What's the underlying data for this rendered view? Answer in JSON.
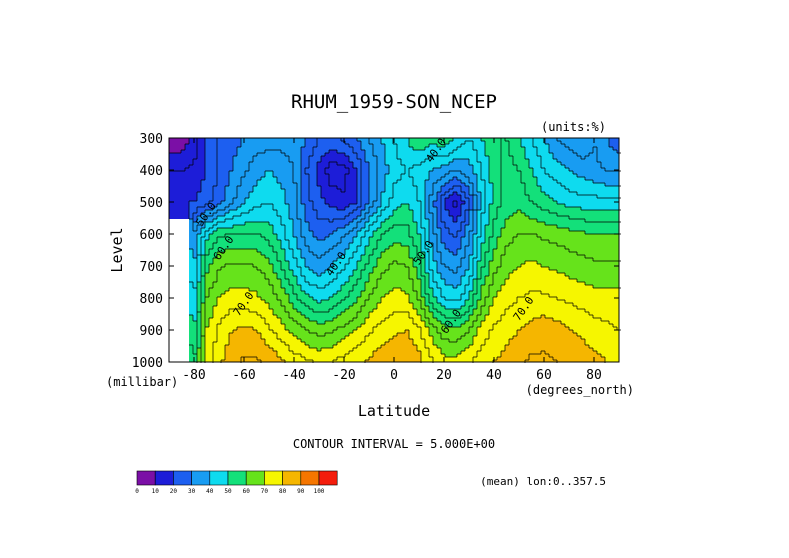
{
  "chart_data": {
    "type": "heatmap",
    "title": "RHUM_1959-SON_NCEP",
    "units_label": "(units:%)",
    "xlabel": "Latitude",
    "ylabel": "Level",
    "x_units": "(degrees_north)",
    "y_units": "(millibar)",
    "xlim": [
      -90,
      90
    ],
    "ylim": [
      1000,
      300
    ],
    "x_ticks": [
      -80,
      -60,
      -40,
      -20,
      0,
      20,
      40,
      60,
      80
    ],
    "x_tick_labels": [
      "-80",
      "-60",
      "-40",
      "-20",
      "0",
      "20",
      "40",
      "60",
      "80"
    ],
    "y_ticks": [
      300,
      400,
      500,
      600,
      700,
      800,
      900,
      1000
    ],
    "y_tick_labels": [
      "300",
      "400",
      "500",
      "600",
      "700",
      "800",
      "900",
      "1000"
    ],
    "contour_interval_label": "CONTOUR INTERVAL = 5.000E+00",
    "footnote": "(mean) lon:0..357.5",
    "grid": false,
    "contour_labels": [
      {
        "text": "50.0",
        "lat": -74,
        "level": 545
      },
      {
        "text": "60.0",
        "lat": -67,
        "level": 650
      },
      {
        "text": "70.0",
        "lat": -59,
        "level": 825
      },
      {
        "text": "40.0",
        "lat": -22,
        "level": 700
      },
      {
        "text": "40.0",
        "lat": 18,
        "level": 345
      },
      {
        "text": "50.0",
        "lat": 13,
        "level": 665
      },
      {
        "text": "60.0",
        "lat": 24,
        "level": 880
      },
      {
        "text": "70.0",
        "lat": 53,
        "level": 840
      }
    ],
    "field": {
      "lat": [
        -90,
        -85,
        -80,
        -75,
        -70,
        -65,
        -60,
        -55,
        -50,
        -45,
        -40,
        -35,
        -30,
        -25,
        -20,
        -15,
        -10,
        -5,
        0,
        5,
        10,
        15,
        20,
        25,
        30,
        35,
        40,
        45,
        50,
        55,
        60,
        65,
        70,
        75,
        80,
        85,
        90
      ],
      "levels": [
        300,
        400,
        500,
        600,
        700,
        800,
        900,
        1000
      ],
      "missing_value": -1,
      "values": [
        [
          5,
          6,
          12,
          20,
          25,
          28,
          30,
          32,
          32,
          33,
          33,
          30,
          25,
          25,
          26,
          30,
          35,
          40,
          45,
          50,
          55,
          52,
          55,
          50,
          45,
          50,
          55,
          55,
          50,
          45,
          40,
          35,
          32,
          30,
          35,
          30,
          25
        ],
        [
          15,
          15,
          16,
          20,
          25,
          30,
          34,
          38,
          40,
          38,
          35,
          25,
          18,
          12,
          13,
          20,
          30,
          37,
          43,
          45,
          43,
          40,
          38,
          35,
          38,
          45,
          52,
          57,
          55,
          50,
          45,
          42,
          40,
          38,
          36,
          35,
          35
        ],
        [
          18,
          18,
          20,
          23,
          28,
          34,
          40,
          43,
          45,
          42,
          37,
          27,
          22,
          18,
          16,
          20,
          30,
          40,
          47,
          50,
          45,
          33,
          20,
          13,
          25,
          42,
          52,
          57,
          58,
          55,
          52,
          50,
          48,
          47,
          47,
          46,
          46
        ],
        [
          -1,
          -1,
          35,
          48,
          54,
          55,
          55,
          55,
          53,
          47,
          40,
          32,
          28,
          30,
          34,
          40,
          48,
          55,
          58,
          57,
          50,
          38,
          27,
          24,
          34,
          47,
          57,
          63,
          65,
          65,
          64,
          63,
          62,
          61,
          60,
          60,
          60
        ],
        [
          -1,
          -1,
          40,
          58,
          64,
          66,
          66,
          65,
          62,
          55,
          47,
          40,
          37,
          40,
          44,
          50,
          57,
          63,
          66,
          65,
          57,
          43,
          35,
          33,
          40,
          54,
          63,
          68,
          70,
          71,
          70,
          69,
          68,
          67,
          66,
          66,
          66
        ],
        [
          -1,
          -1,
          45,
          65,
          70,
          72,
          72,
          71,
          68,
          64,
          57,
          51,
          48,
          50,
          54,
          59,
          65,
          70,
          72,
          71,
          64,
          52,
          45,
          43,
          50,
          62,
          70,
          73,
          75,
          76,
          76,
          75,
          74,
          73,
          72,
          72,
          72
        ],
        [
          -1,
          -1,
          50,
          70,
          76,
          80,
          81,
          80,
          76,
          72,
          68,
          65,
          63,
          64,
          67,
          70,
          74,
          77,
          79,
          80,
          76,
          68,
          62,
          61,
          65,
          72,
          76,
          78,
          80,
          82,
          83,
          82,
          80,
          79,
          77,
          76,
          75
        ],
        [
          -1,
          -1,
          55,
          72,
          79,
          83,
          86,
          86,
          84,
          81,
          78,
          76,
          74,
          75,
          77,
          79,
          81,
          83,
          84,
          85,
          82,
          76,
          72,
          72,
          74,
          78,
          80,
          82,
          84,
          86,
          86,
          85,
          84,
          83,
          82,
          80,
          79
        ]
      ]
    },
    "colorbar": {
      "bounds": [
        0,
        10,
        20,
        30,
        40,
        50,
        60,
        70,
        80,
        90,
        100
      ],
      "labels": [
        "0",
        "10",
        "20",
        "30",
        "40",
        "50",
        "60",
        "70",
        "80",
        "90",
        "100"
      ],
      "colors": [
        "#7b0fa6",
        "#1d1dd8",
        "#1d5ff0",
        "#189cf2",
        "#0edbef",
        "#13e07a",
        "#66e31b",
        "#f6f600",
        "#f5b600",
        "#f57600",
        "#f41d0c"
      ]
    }
  }
}
